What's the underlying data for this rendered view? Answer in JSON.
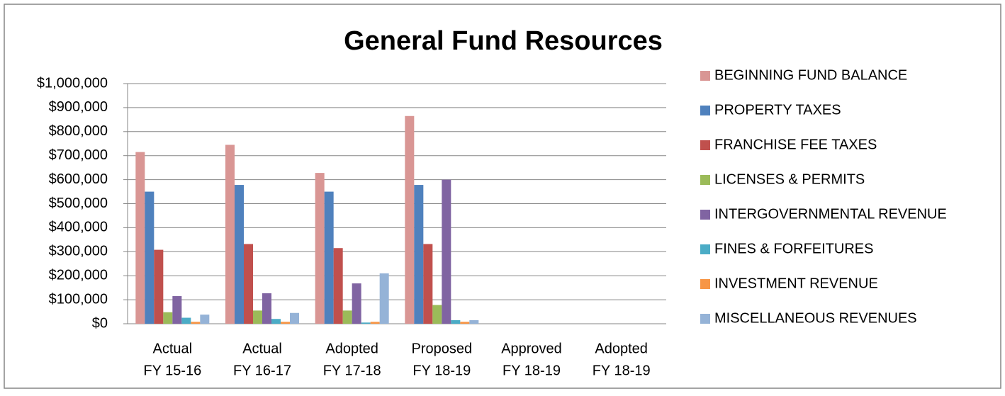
{
  "chart_data": {
    "type": "bar",
    "title": "General Fund Resources",
    "categories": [
      [
        "Actual",
        "FY 15-16"
      ],
      [
        "Actual",
        "FY 16-17"
      ],
      [
        "Adopted",
        "FY 17-18"
      ],
      [
        "Proposed",
        "FY 18-19"
      ],
      [
        "Approved",
        "FY 18-19"
      ],
      [
        "Adopted",
        "FY 18-19"
      ]
    ],
    "series": [
      {
        "name": "BEGINNING FUND BALANCE",
        "color": "#d99694",
        "values": [
          715000,
          745000,
          628000,
          865000,
          null,
          null
        ]
      },
      {
        "name": "PROPERTY TAXES",
        "color": "#4f81bd",
        "values": [
          550000,
          578000,
          550000,
          578000,
          null,
          null
        ]
      },
      {
        "name": "FRANCHISE FEE TAXES",
        "color": "#c0504d",
        "values": [
          308000,
          332000,
          315000,
          332000,
          null,
          null
        ]
      },
      {
        "name": "LICENSES & PERMITS",
        "color": "#9bbb59",
        "values": [
          48000,
          55000,
          55000,
          78000,
          null,
          null
        ]
      },
      {
        "name": "INTERGOVERNMENTAL REVENUE",
        "color": "#8064a2",
        "values": [
          115000,
          127000,
          168000,
          600000,
          null,
          null
        ]
      },
      {
        "name": "FINES & FORFEITURES",
        "color": "#4bacc6",
        "values": [
          25000,
          20000,
          5000,
          15000,
          null,
          null
        ]
      },
      {
        "name": "INVESTMENT REVENUE",
        "color": "#f79646",
        "values": [
          8000,
          8000,
          8000,
          8000,
          null,
          null
        ]
      },
      {
        "name": "MISCELLANEOUS REVENUES",
        "color": "#95b3d7",
        "values": [
          38000,
          45000,
          210000,
          15000,
          null,
          null
        ]
      }
    ],
    "ylim": [
      0,
      1000000
    ],
    "yticks": [
      {
        "value": 0,
        "label": "$0"
      },
      {
        "value": 100000,
        "label": "$100,000"
      },
      {
        "value": 200000,
        "label": "$200,000"
      },
      {
        "value": 300000,
        "label": "$300,000"
      },
      {
        "value": 400000,
        "label": "$400,000"
      },
      {
        "value": 500000,
        "label": "$500,000"
      },
      {
        "value": 600000,
        "label": "$600,000"
      },
      {
        "value": 700000,
        "label": "$700,000"
      },
      {
        "value": 800000,
        "label": "$800,000"
      },
      {
        "value": 900000,
        "label": "$900,000"
      },
      {
        "value": 1000000,
        "label": "$1,000,000"
      }
    ],
    "grid": true,
    "legend": "right"
  }
}
